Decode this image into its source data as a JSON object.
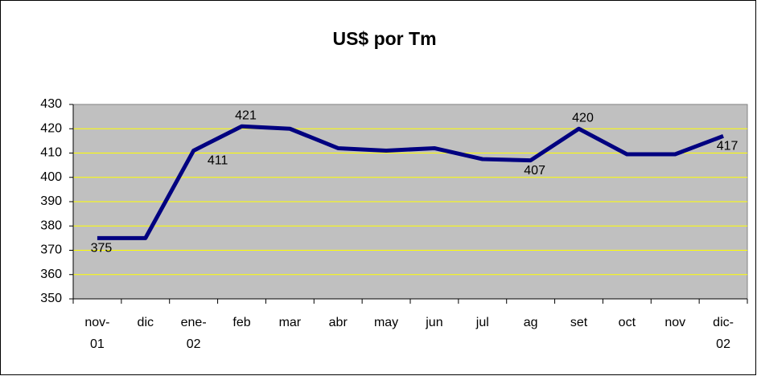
{
  "chart_data": {
    "type": "line",
    "title": "US$ por Tm",
    "categories": [
      "nov-01",
      "dic",
      "ene-02",
      "feb",
      "mar",
      "abr",
      "may",
      "jun",
      "jul",
      "ag",
      "set",
      "oct",
      "nov",
      "dic-02"
    ],
    "values": [
      375,
      375,
      411,
      421,
      420,
      412,
      411,
      412,
      407.5,
      407,
      420,
      409.5,
      409.5,
      417
    ],
    "value_labels": [
      "375",
      null,
      "411",
      "421",
      null,
      null,
      null,
      null,
      null,
      "407",
      "420",
      null,
      null,
      "417"
    ],
    "color": "#000080",
    "ylim": [
      350,
      430
    ],
    "yticks": [
      350,
      360,
      370,
      380,
      390,
      400,
      410,
      420,
      430
    ],
    "grid": true
  }
}
